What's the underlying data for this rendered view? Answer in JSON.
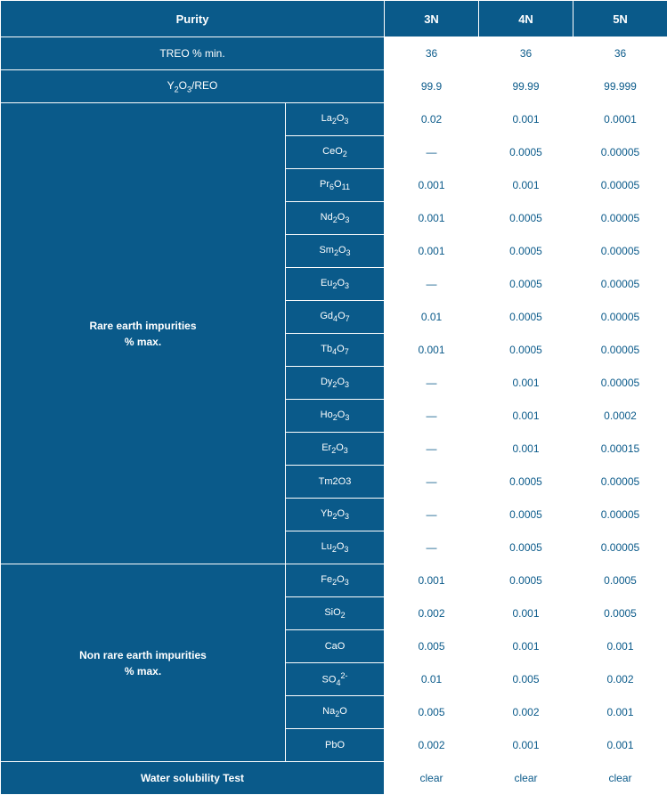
{
  "colors": {
    "header_bg": "#0a5a8a",
    "header_fg": "#ffffff",
    "data_bg": "#ffffff",
    "data_fg": "#0a5a8a",
    "border": "#ffffff"
  },
  "columns": {
    "purity": "Purity",
    "n3": "3N",
    "n4": "4N",
    "n5": "5N"
  },
  "headerRows": [
    {
      "label": "TREO % min.",
      "n3": "36",
      "n4": "36",
      "n5": "36"
    },
    {
      "label": "Y₂O₃/REO",
      "formula": {
        "base": "Y",
        "sub1": "2",
        "mid": "O",
        "sub2": "3",
        "tail": "/REO"
      },
      "n3": "99.9",
      "n4": "99.99",
      "n5": "99.999"
    }
  ],
  "groups": [
    {
      "title": "Rare earth impurities\n% max.",
      "items": [
        {
          "formula": {
            "base": "La",
            "sub1": "2",
            "mid": "O",
            "sub2": "3"
          },
          "n3": "0.02",
          "n4": "0.001",
          "n5": "0.0001"
        },
        {
          "formula": {
            "base": "CeO",
            "sub1": "2"
          },
          "n3": "—",
          "n4": "0.0005",
          "n5": "0.00005"
        },
        {
          "formula": {
            "base": "Pr",
            "sub1": "6",
            "mid": "O",
            "sub2": "11"
          },
          "n3": "0.001",
          "n4": "0.001",
          "n5": "0.00005"
        },
        {
          "formula": {
            "base": "Nd",
            "sub1": "2",
            "mid": "O",
            "sub2": "3"
          },
          "n3": "0.001",
          "n4": "0.0005",
          "n5": "0.00005"
        },
        {
          "formula": {
            "base": "Sm",
            "sub1": "2",
            "mid": "O",
            "sub2": "3"
          },
          "n3": "0.001",
          "n4": "0.0005",
          "n5": "0.00005"
        },
        {
          "formula": {
            "base": "Eu",
            "sub1": "2",
            "mid": "O",
            "sub2": "3"
          },
          "n3": "—",
          "n4": "0.0005",
          "n5": "0.00005"
        },
        {
          "formula": {
            "base": "Gd",
            "sub1": "4",
            "mid": "O",
            "sub2": "7"
          },
          "n3": "0.01",
          "n4": "0.0005",
          "n5": "0.00005"
        },
        {
          "formula": {
            "base": "Tb",
            "sub1": "4",
            "mid": "O",
            "sub2": "7"
          },
          "n3": "0.001",
          "n4": "0.0005",
          "n5": "0.00005"
        },
        {
          "formula": {
            "base": "Dy",
            "sub1": "2",
            "mid": "O",
            "sub2": "3"
          },
          "n3": "—",
          "n4": "0.001",
          "n5": "0.00005"
        },
        {
          "formula": {
            "base": "Ho",
            "sub1": "2",
            "mid": "O",
            "sub2": "3"
          },
          "n3": "—",
          "n4": "0.001",
          "n5": "0.0002"
        },
        {
          "formula": {
            "base": "Er",
            "sub1": "2",
            "mid": "O",
            "sub2": "3"
          },
          "n3": "—",
          "n4": "0.001",
          "n5": "0.00015"
        },
        {
          "formula": {
            "base": "Tm2O3"
          },
          "n3": "—",
          "n4": "0.0005",
          "n5": "0.00005"
        },
        {
          "formula": {
            "base": "Yb",
            "sub1": "2",
            "mid": "O",
            "sub2": "3"
          },
          "n3": "—",
          "n4": "0.0005",
          "n5": "0.00005"
        },
        {
          "formula": {
            "base": "Lu",
            "sub1": "2",
            "mid": "O",
            "sub2": "3"
          },
          "n3": "—",
          "n4": "0.0005",
          "n5": "0.00005"
        }
      ]
    },
    {
      "title": "Non rare earth impurities\n% max.",
      "items": [
        {
          "formula": {
            "base": "Fe",
            "sub1": "2",
            "mid": "O",
            "sub2": "3"
          },
          "n3": "0.001",
          "n4": "0.0005",
          "n5": "0.0005"
        },
        {
          "formula": {
            "base": "SiO",
            "sub1": "2"
          },
          "n3": "0.002",
          "n4": "0.001",
          "n5": "0.0005"
        },
        {
          "formula": {
            "base": "CaO"
          },
          "n3": "0.005",
          "n4": "0.001",
          "n5": "0.001"
        },
        {
          "formula": {
            "base": "SO",
            "sub1": "4",
            "sup": "2-"
          },
          "n3": "0.01",
          "n4": "0.005",
          "n5": "0.002"
        },
        {
          "formula": {
            "base": "Na",
            "sub1": "2",
            "mid": "O"
          },
          "n3": "0.005",
          "n4": "0.002",
          "n5": "0.001"
        },
        {
          "formula": {
            "base": "PbO"
          },
          "n3": "0.002",
          "n4": "0.001",
          "n5": "0.001"
        }
      ]
    }
  ],
  "footer": {
    "label": "Water solubility Test",
    "n3": "clear",
    "n4": "clear",
    "n5": "clear"
  }
}
